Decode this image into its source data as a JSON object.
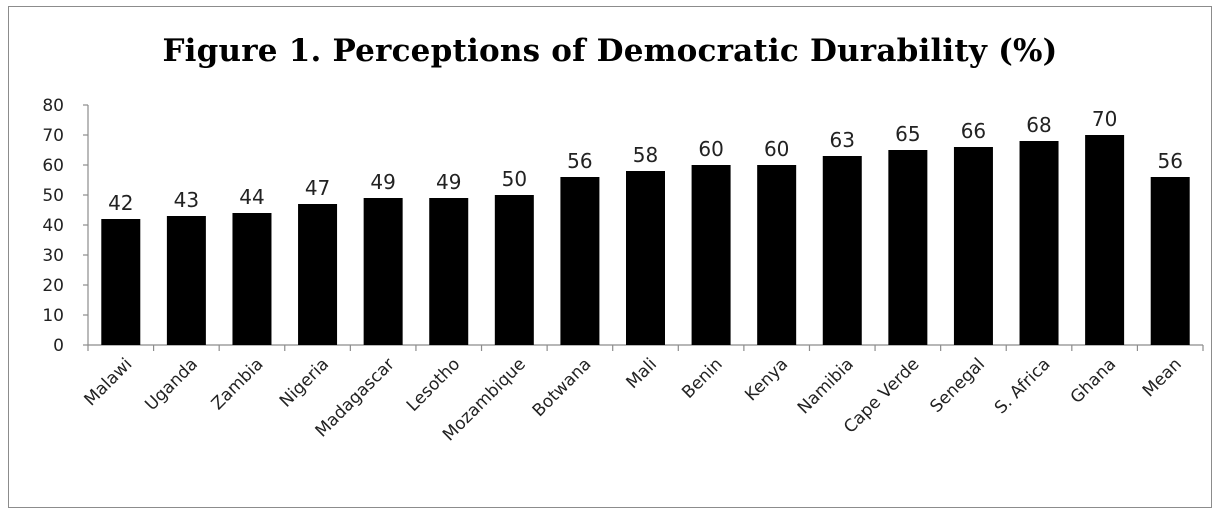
{
  "chart_data": {
    "type": "bar",
    "title": "Figure 1. Perceptions of Democratic Durability (%)",
    "xlabel": "",
    "ylabel": "",
    "ylim": [
      0,
      80
    ],
    "yticks": [
      "80",
      "70",
      "60",
      "50",
      "40",
      "30",
      "20",
      "10",
      "0"
    ],
    "categories": [
      "Malawi",
      "Uganda",
      "Zambia",
      "Nigeria",
      "Madagascar",
      "Lesotho",
      "Mozambique",
      "Botwana",
      "Mali",
      "Benin",
      "Kenya",
      "Namibia",
      "Cape Verde",
      "Senegal",
      "S. Africa",
      "Ghana",
      "Mean"
    ],
    "values": [
      42,
      43,
      44,
      47,
      49,
      49,
      50,
      56,
      58,
      60,
      60,
      63,
      65,
      66,
      68,
      70,
      56
    ],
    "data_labels": [
      "42",
      "43",
      "44",
      "47",
      "49",
      "49",
      "50",
      "56",
      "58",
      "60",
      "60",
      "63",
      "65",
      "66",
      "68",
      "70",
      "56"
    ],
    "grid": false,
    "legend": "none",
    "bar_color": "#000000"
  }
}
